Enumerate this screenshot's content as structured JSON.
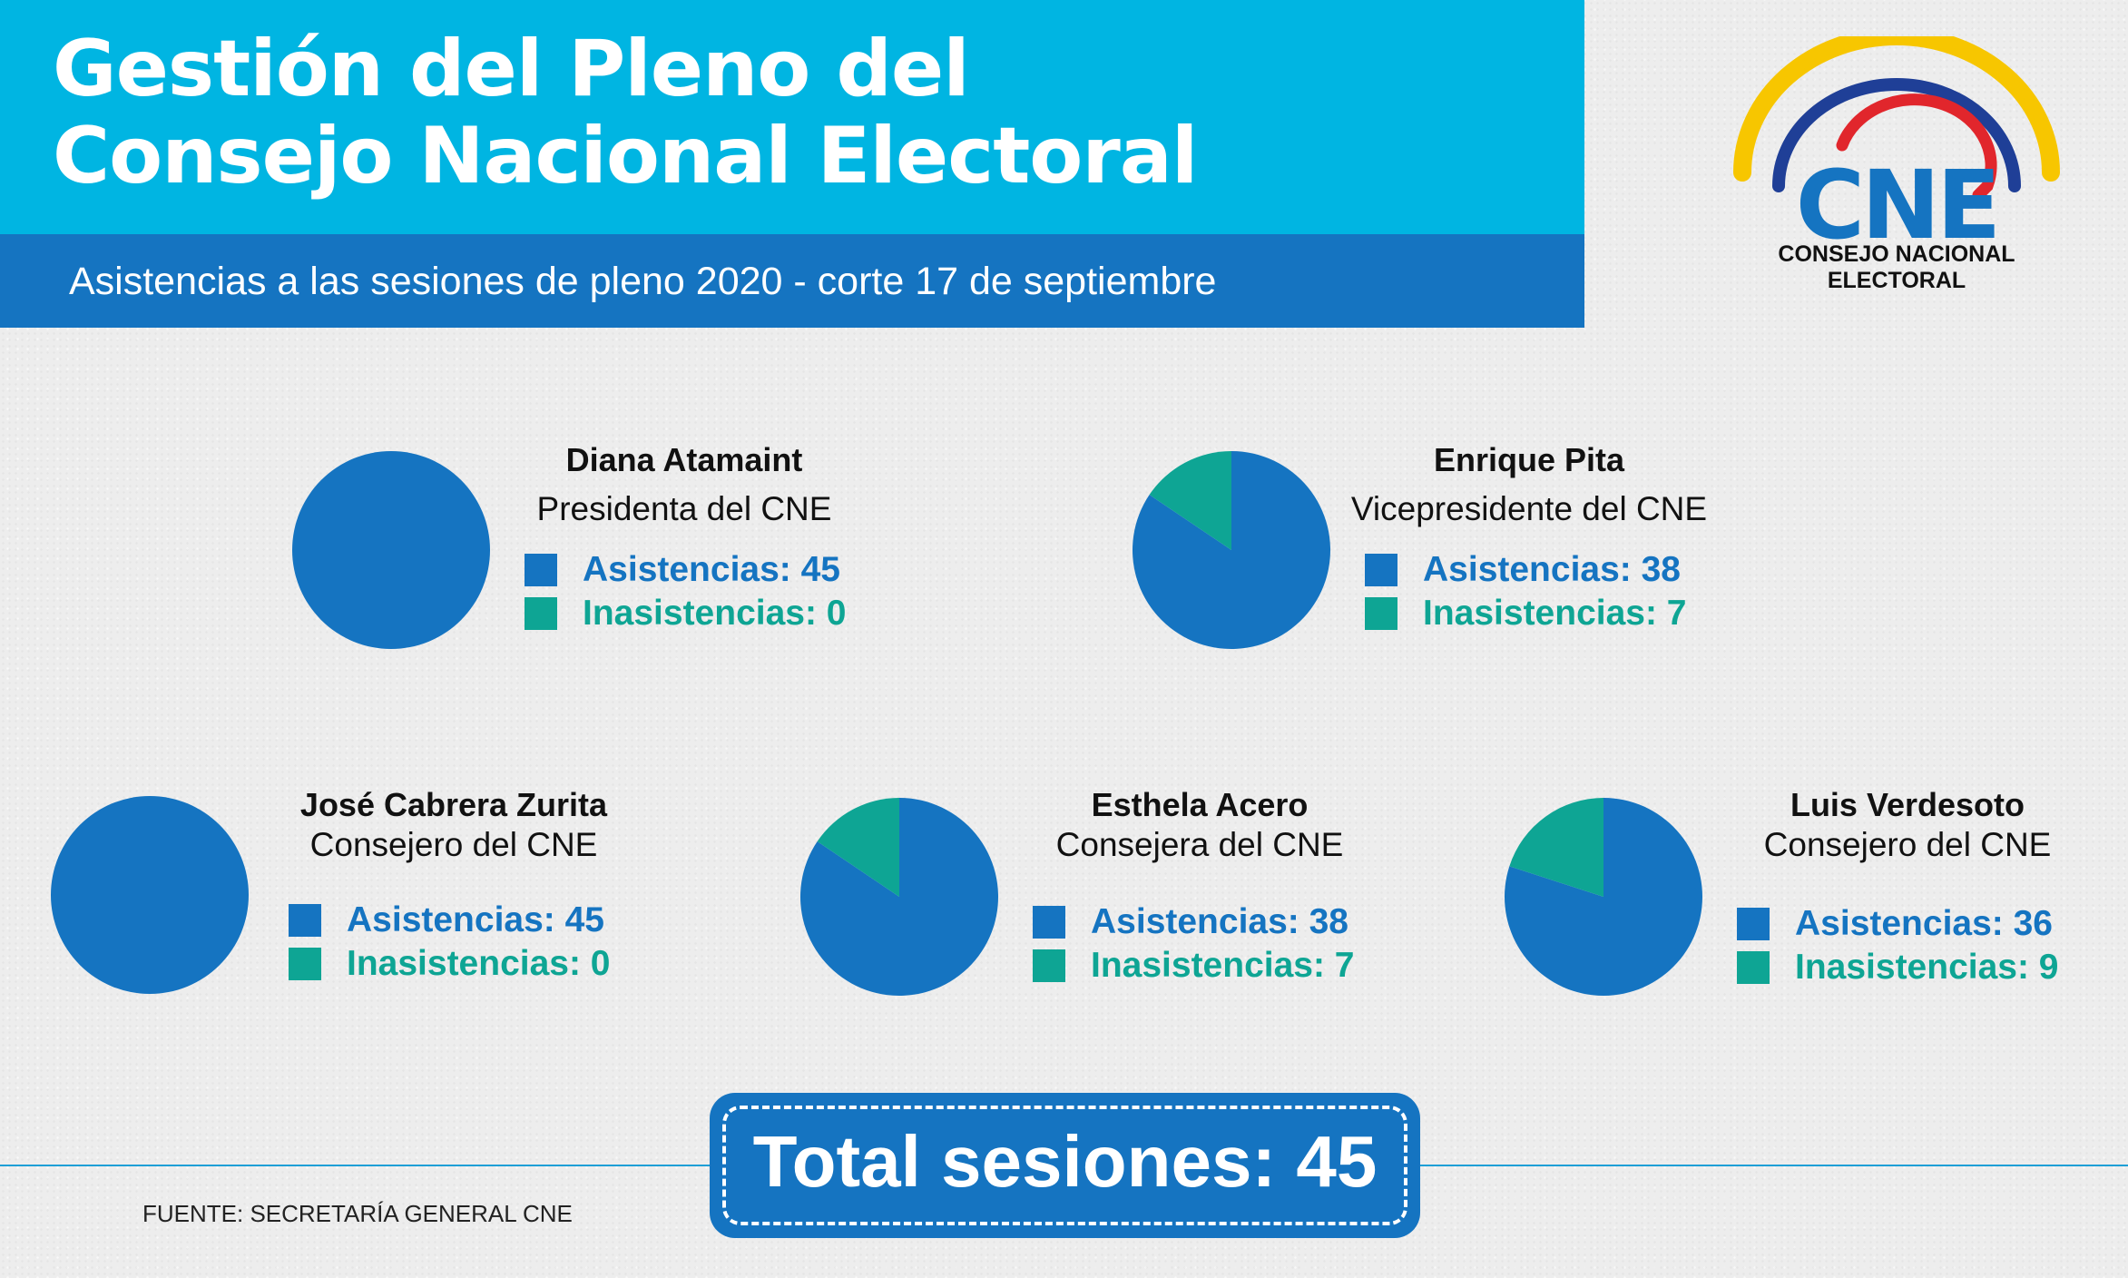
{
  "header": {
    "title_line1": "Gestión del Pleno del",
    "title_line2": "Consejo Nacional Electoral",
    "subtitle": "Asistencias a las sesiones de pleno 2020 - corte 17 de septiembre"
  },
  "logo": {
    "wordmark": "CNE",
    "caption": "CONSEJO NACIONAL ELECTORAL"
  },
  "colors": {
    "asistencias": "#1574c1",
    "inasistencias": "#0ea594",
    "header_cyan": "#00b5e2",
    "header_blue": "#1574c1"
  },
  "chart_data": [
    {
      "type": "pie",
      "title": "Diana Atamaint",
      "subtitle": "Presidenta del CNE",
      "labels": [
        "Asistencias",
        "Inasistencias"
      ],
      "values": [
        45,
        0
      ],
      "legend": [
        "Asistencias: 45",
        "Inasistencias: 0"
      ]
    },
    {
      "type": "pie",
      "title": "Enrique Pita",
      "subtitle": "Vicepresidente del CNE",
      "labels": [
        "Asistencias",
        "Inasistencias"
      ],
      "values": [
        38,
        7
      ],
      "legend": [
        "Asistencias: 38",
        "Inasistencias: 7"
      ]
    },
    {
      "type": "pie",
      "title": "José Cabrera Zurita",
      "subtitle": "Consejero del CNE",
      "labels": [
        "Asistencias",
        "Inasistencias"
      ],
      "values": [
        45,
        0
      ],
      "legend": [
        "Asistencias: 45",
        "Inasistencias: 0"
      ]
    },
    {
      "type": "pie",
      "title": "Esthela Acero",
      "subtitle": "Consejera del CNE",
      "labels": [
        "Asistencias",
        "Inasistencias"
      ],
      "values": [
        38,
        7
      ],
      "legend": [
        "Asistencias: 38",
        "Inasistencias: 7"
      ]
    },
    {
      "type": "pie",
      "title": "Luis Verdesoto",
      "subtitle": "Consejero del CNE",
      "labels": [
        "Asistencias",
        "Inasistencias"
      ],
      "values": [
        36,
        9
      ],
      "legend": [
        "Asistencias: 36",
        "Inasistencias: 9"
      ]
    }
  ],
  "total": {
    "label": "Total sesiones: 45"
  },
  "source": "FUENTE: SECRETARÍA GENERAL CNE"
}
